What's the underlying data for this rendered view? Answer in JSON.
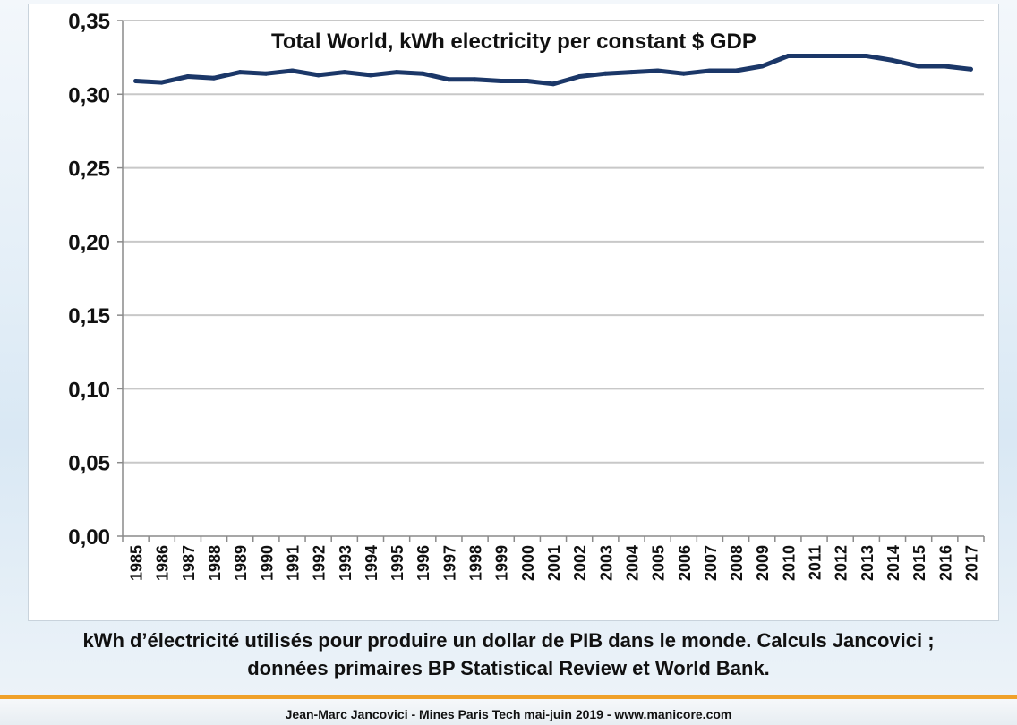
{
  "chart_data": {
    "type": "line",
    "title": "Total World, kWh electricity per constant $ GDP",
    "xlabel": "",
    "ylabel": "",
    "ylim": [
      0,
      0.35
    ],
    "y_ticks": [
      "0,00",
      "0,05",
      "0,10",
      "0,15",
      "0,20",
      "0,25",
      "0,30",
      "0,35"
    ],
    "grid": true,
    "legend": "none",
    "line_color": "#1b3768",
    "categories": [
      "1985",
      "1986",
      "1987",
      "1988",
      "1989",
      "1990",
      "1991",
      "1992",
      "1993",
      "1994",
      "1995",
      "1996",
      "1997",
      "1998",
      "1999",
      "2000",
      "2001",
      "2002",
      "2003",
      "2004",
      "2005",
      "2006",
      "2007",
      "2008",
      "2009",
      "2010",
      "2011",
      "2012",
      "2013",
      "2014",
      "2015",
      "2016",
      "2017"
    ],
    "series": [
      {
        "values": [
          0.309,
          0.308,
          0.312,
          0.311,
          0.315,
          0.314,
          0.316,
          0.313,
          0.315,
          0.313,
          0.315,
          0.314,
          0.31,
          0.31,
          0.309,
          0.309,
          0.307,
          0.312,
          0.314,
          0.315,
          0.316,
          0.314,
          0.316,
          0.316,
          0.319,
          0.326,
          0.326,
          0.326,
          0.326,
          0.323,
          0.319,
          0.319,
          0.317
        ]
      }
    ]
  },
  "caption": {
    "line1": "kWh d’électricité utilisés pour produire un dollar de PIB dans le monde. Calculs Jancovici ;",
    "line2": "données primaires BP Statistical Review et World Bank."
  },
  "footer": "Jean-Marc Jancovici - Mines Paris Tech mai-juin 2019 - www.manicore.com"
}
